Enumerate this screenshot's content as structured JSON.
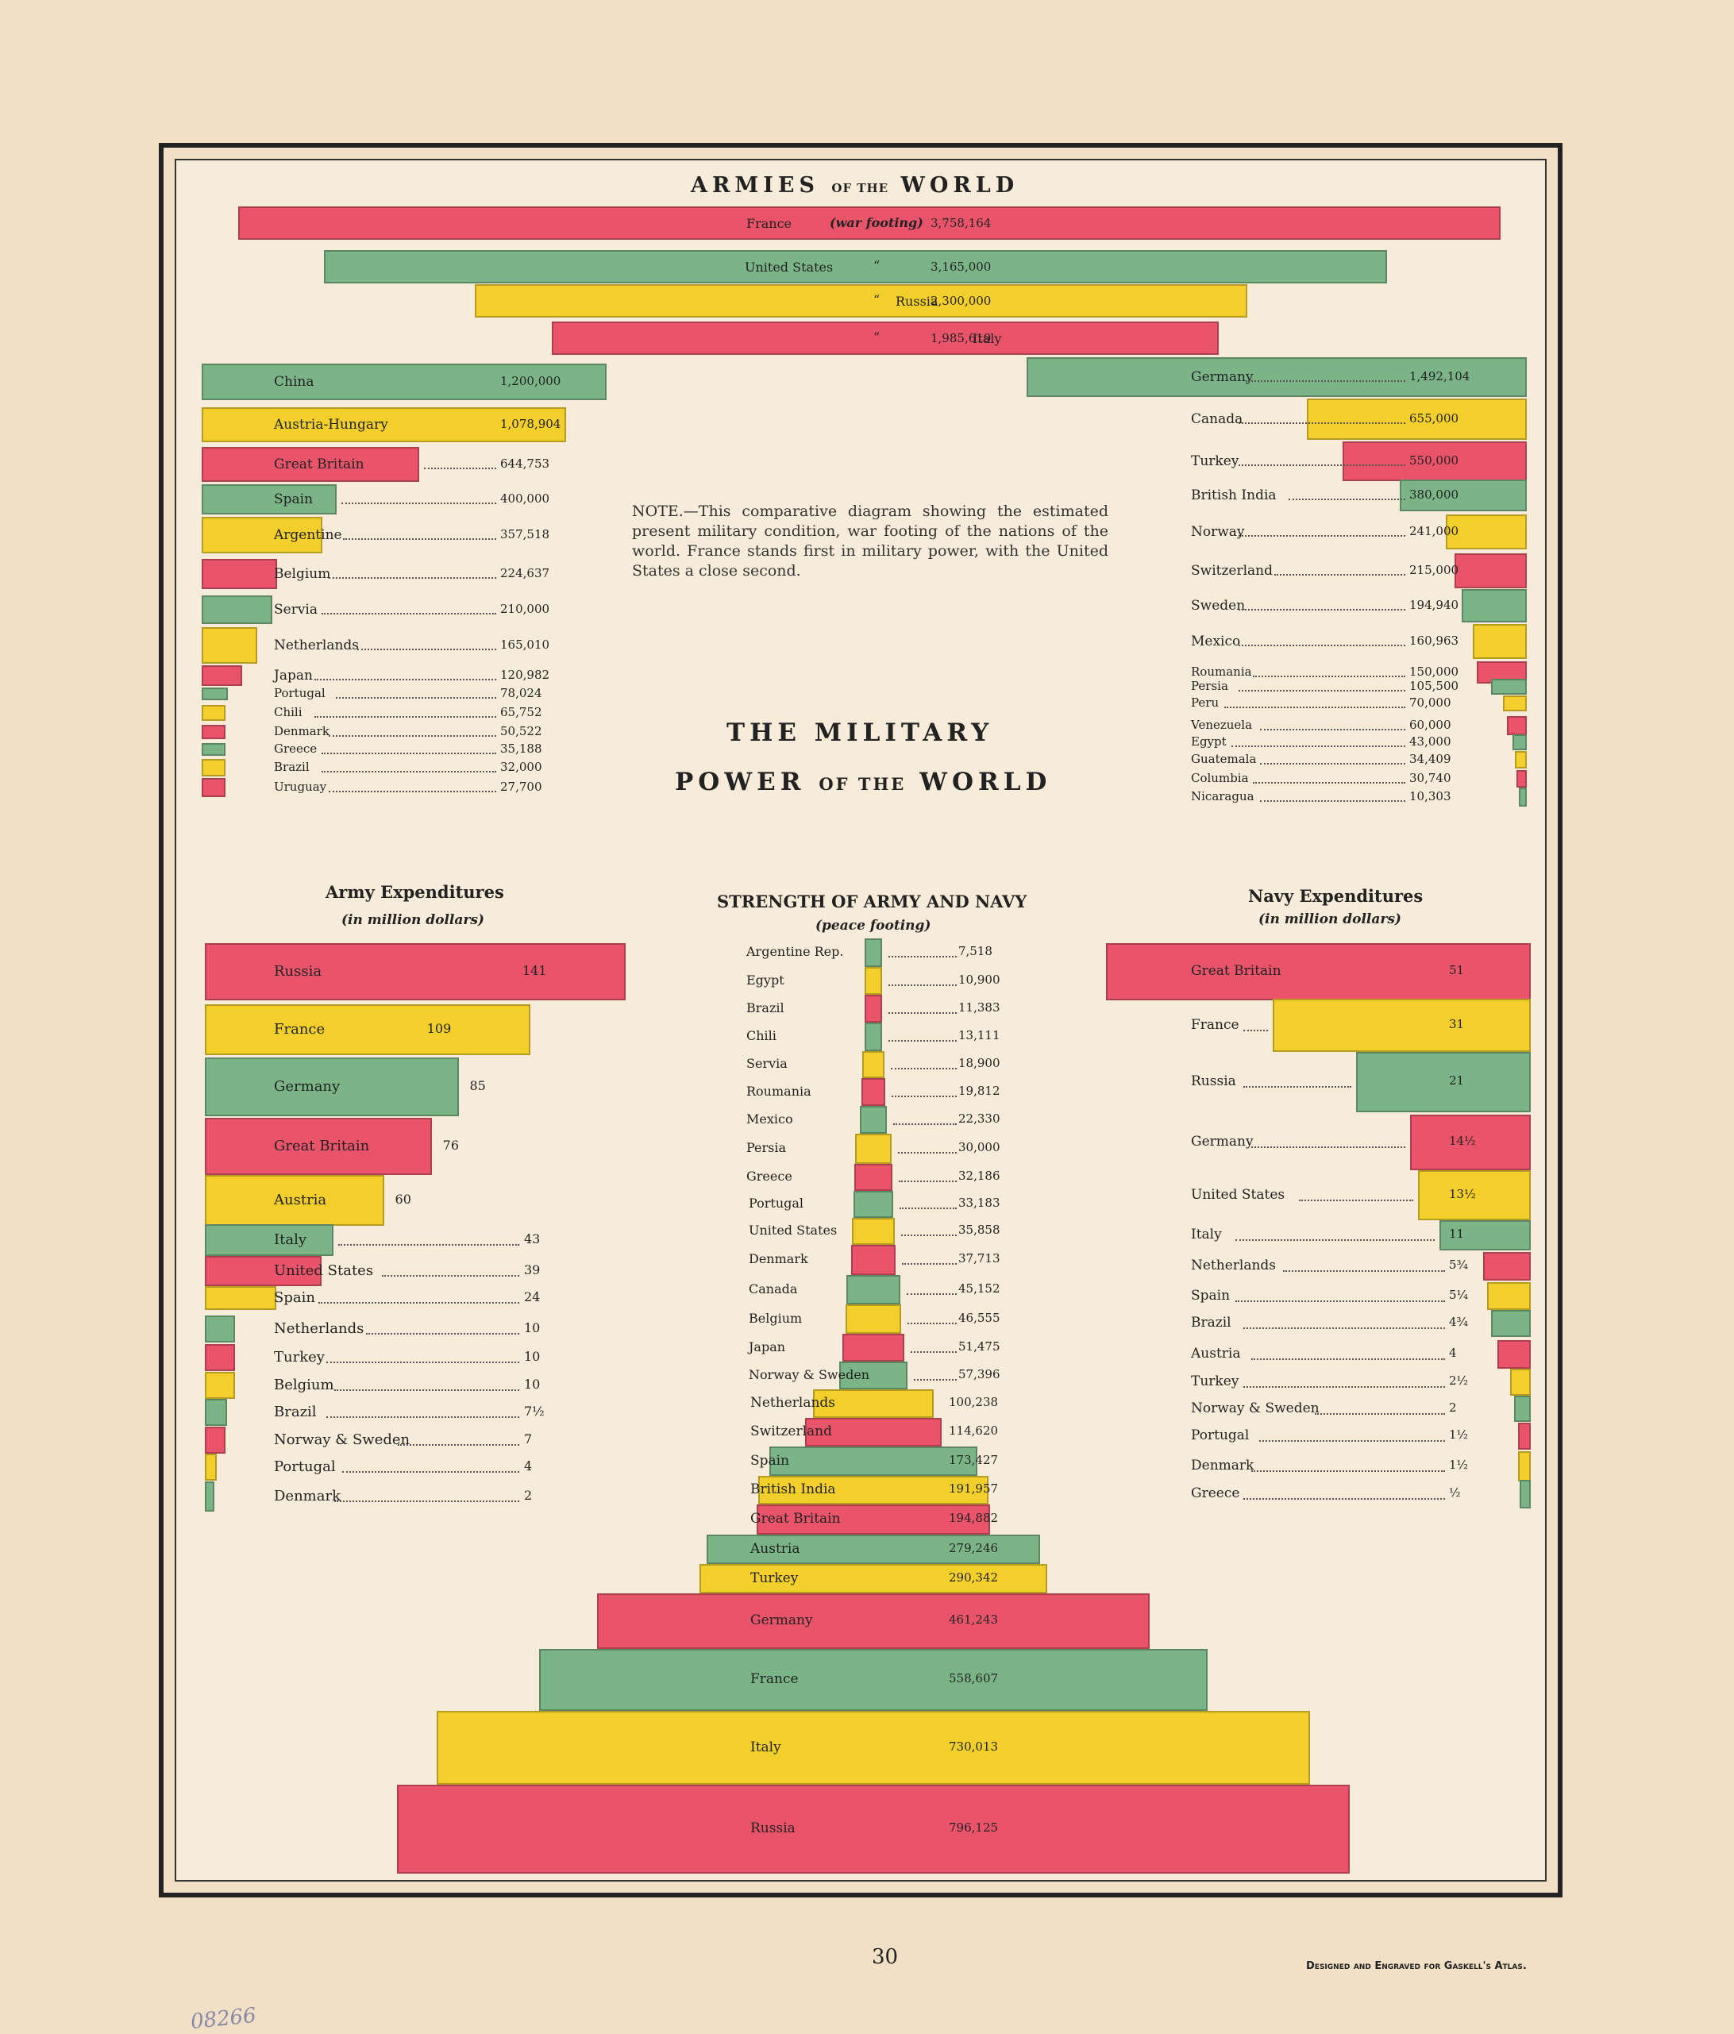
{
  "page": {
    "number": "30",
    "credit": "Designed and Engraved for Gaskell's Atlas.",
    "archive_mark": "08266"
  },
  "armies": {
    "title_part1": "ARMIES",
    "title_part2": "OF THE",
    "title_part3": "WORLD",
    "war_footing": "(war footing)",
    "ditto": "“"
  },
  "center": {
    "title_line1": "THE MILITARY",
    "title_line2_a": "POWER",
    "title_line2_b": "OF THE",
    "title_line2_c": "WORLD",
    "note": "NOTE.—This comparative diagram showing the estimated present military condition, war footing of the nations of the world. France stands first in military power, with the United States a close second."
  },
  "army_exp": {
    "title": "Army Expenditures",
    "subtitle": "(in million dollars)"
  },
  "strength": {
    "title": "STRENGTH OF ARMY AND NAVY",
    "subtitle": "(peace footing)"
  },
  "navy_exp": {
    "title": "Navy Expenditures",
    "subtitle": "(in million dollars)"
  },
  "colors": {
    "red": "#e9546b",
    "green": "#7bb487",
    "yellow": "#f2cf2b"
  },
  "chart_data": [
    {
      "type": "bar",
      "title": "ARMIES OF THE WORLD",
      "subtitle": "war footing",
      "categories": [
        "France",
        "United States",
        "Russia",
        "Italy"
      ],
      "values": [
        3758164,
        3165000,
        2300000,
        1985619
      ],
      "labels": [
        "3,758,164",
        "3,165,000",
        "2,300,000",
        "1,985,619"
      ],
      "colors": [
        "red",
        "green",
        "yellow",
        "red"
      ]
    },
    {
      "type": "bar",
      "title": "Armies (left column)",
      "categories": [
        "China",
        "Austria-Hungary",
        "Great Britain",
        "Spain",
        "Argentine",
        "Belgium",
        "Servia",
        "Netherlands",
        "Japan",
        "Portugal",
        "Chili",
        "Denmark",
        "Greece",
        "Brazil",
        "Uruguay"
      ],
      "values": [
        1200000,
        1078904,
        644753,
        400000,
        357518,
        224637,
        210000,
        165010,
        120982,
        78024,
        65752,
        50522,
        35188,
        32000,
        27700
      ],
      "labels": [
        "1,200,000",
        "1,078,904",
        "644,753",
        "400,000",
        "357,518",
        "224,637",
        "210,000",
        "165,010",
        "120,982",
        "78,024",
        "65,752",
        "50,522",
        "35,188",
        "32,000",
        "27,700"
      ],
      "colors": [
        "green",
        "yellow",
        "red",
        "green",
        "yellow",
        "red",
        "green",
        "yellow",
        "red",
        "green",
        "yellow",
        "red",
        "green",
        "yellow",
        "red"
      ]
    },
    {
      "type": "bar",
      "title": "Armies (right column)",
      "categories": [
        "Germany",
        "Canada",
        "Turkey",
        "British India",
        "Norway",
        "Switzerland",
        "Sweden",
        "Mexico",
        "Roumania",
        "Persia",
        "Peru",
        "Venezuela",
        "Egypt",
        "Guatemala",
        "Columbia",
        "Nicaragua"
      ],
      "values": [
        1492104,
        655000,
        550000,
        380000,
        241000,
        215000,
        194940,
        160963,
        150000,
        105500,
        70000,
        60000,
        43000,
        34409,
        30740,
        10303
      ],
      "labels": [
        "1,492,104",
        "655,000",
        "550,000",
        "380,000",
        "241,000",
        "215,000",
        "194,940",
        "160,963",
        "150,000",
        "105,500",
        "70,000",
        "60,000",
        "43,000",
        "34,409",
        "30,740",
        "10,303"
      ],
      "colors": [
        "green",
        "yellow",
        "red",
        "green",
        "yellow",
        "red",
        "green",
        "yellow",
        "red",
        "green",
        "yellow",
        "red",
        "green",
        "yellow",
        "red",
        "green"
      ]
    },
    {
      "type": "bar",
      "title": "Army Expenditures",
      "subtitle": "in million dollars",
      "categories": [
        "Russia",
        "France",
        "Germany",
        "Great Britain",
        "Austria",
        "Italy",
        "United States",
        "Spain",
        "Netherlands",
        "Turkey",
        "Belgium",
        "Brazil",
        "Norway & Sweden",
        "Portugal",
        "Denmark"
      ],
      "values": [
        141,
        109,
        85,
        76,
        60,
        43,
        39,
        24,
        10,
        10,
        10,
        7.5,
        7,
        4,
        2
      ],
      "labels": [
        "141",
        "109",
        "85",
        "76",
        "60",
        "43",
        "39",
        "24",
        "10",
        "10",
        "10",
        "7½",
        "7",
        "4",
        "2"
      ],
      "colors": [
        "red",
        "yellow",
        "green",
        "red",
        "yellow",
        "green",
        "red",
        "yellow",
        "green",
        "red",
        "yellow",
        "green",
        "red",
        "yellow",
        "green"
      ]
    },
    {
      "type": "bar",
      "title": "STRENGTH OF ARMY AND NAVY",
      "subtitle": "peace footing",
      "categories": [
        "Argentine Rep.",
        "Egypt",
        "Brazil",
        "Chili",
        "Servia",
        "Roumania",
        "Mexico",
        "Persia",
        "Greece",
        "Portugal",
        "United States",
        "Denmark",
        "Canada",
        "Belgium",
        "Japan",
        "Norway & Sweden",
        "Netherlands",
        "Switzerland",
        "Spain",
        "British India",
        "Great Britain",
        "Austria",
        "Turkey",
        "Germany",
        "France",
        "Italy",
        "Russia"
      ],
      "values": [
        7518,
        10900,
        11383,
        13111,
        18900,
        19812,
        22330,
        30000,
        32186,
        33183,
        35858,
        37713,
        45152,
        46555,
        51475,
        57396,
        100238,
        114620,
        173427,
        191957,
        194882,
        279246,
        290342,
        461243,
        558607,
        730013,
        796125
      ],
      "labels": [
        "7,518",
        "10,900",
        "11,383",
        "13,111",
        "18,900",
        "19,812",
        "22,330",
        "30,000",
        "32,186",
        "33,183",
        "35,858",
        "37,713",
        "45,152",
        "46,555",
        "51,475",
        "57,396",
        "100,238",
        "114,620",
        "173,427",
        "191,957",
        "194,882",
        "279,246",
        "290,342",
        "461,243",
        "558,607",
        "730,013",
        "796,125"
      ],
      "colors": [
        "green",
        "yellow",
        "red",
        "green",
        "yellow",
        "red",
        "green",
        "yellow",
        "red",
        "green",
        "yellow",
        "red",
        "green",
        "yellow",
        "red",
        "green",
        "yellow",
        "red",
        "green",
        "yellow",
        "red",
        "green",
        "yellow",
        "red",
        "green",
        "yellow",
        "red"
      ]
    },
    {
      "type": "bar",
      "title": "Navy Expenditures",
      "subtitle": "in million dollars",
      "categories": [
        "Great Britain",
        "France",
        "Russia",
        "Germany",
        "United States",
        "Italy",
        "Netherlands",
        "Spain",
        "Brazil",
        "Austria",
        "Turkey",
        "Norway & Sweden",
        "Portugal",
        "Denmark",
        "Greece"
      ],
      "values": [
        51,
        31,
        21,
        14.5,
        13.5,
        11,
        5.75,
        5.25,
        4.75,
        4,
        2.5,
        2,
        1.5,
        1.5,
        0.5
      ],
      "labels": [
        "51",
        "31",
        "21",
        "14½",
        "13½",
        "11",
        "5¾",
        "5¼",
        "4¾",
        "4",
        "2½",
        "2",
        "1½",
        "1½",
        "½"
      ],
      "colors": [
        "red",
        "yellow",
        "green",
        "red",
        "yellow",
        "green",
        "red",
        "yellow",
        "green",
        "red",
        "yellow",
        "green",
        "red",
        "yellow",
        "green"
      ]
    }
  ]
}
